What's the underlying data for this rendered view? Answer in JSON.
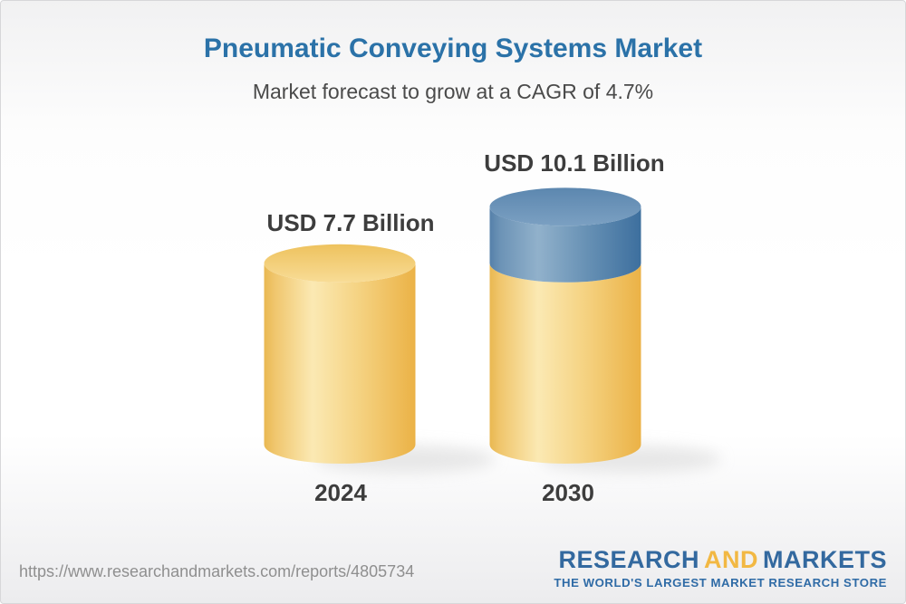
{
  "header": {
    "title": "Pneumatic Conveying Systems Market",
    "subtitle": "Market forecast to grow at a CAGR of 4.7%"
  },
  "chart_data": {
    "type": "bar",
    "style": "3d-cylinder",
    "title": "Pneumatic Conveying Systems Market",
    "subtitle": "Market forecast to grow at a CAGR of 4.7%",
    "unit": "USD Billion",
    "cagr_percent": 4.7,
    "categories": [
      "2024",
      "2030"
    ],
    "values": [
      7.7,
      10.1
    ],
    "bars": [
      {
        "category": "2024",
        "label": "USD 7.7 Billion",
        "total": 7.7,
        "segments": [
          {
            "color": "gold",
            "value": 7.7
          }
        ]
      },
      {
        "category": "2030",
        "label": "USD 10.1 Billion",
        "total": 10.1,
        "segments": [
          {
            "color": "gold",
            "value": 7.7
          },
          {
            "color": "blue",
            "value": 2.4
          }
        ]
      }
    ],
    "colors": {
      "gold": "#f2c263",
      "blue": "#5d87af"
    },
    "legend": "none",
    "grid": false
  },
  "footer": {
    "url": "https://www.researchandmarkets.com/reports/4805734",
    "logo": {
      "word1": "RESEARCH",
      "word2": "AND",
      "word3": "MARKETS",
      "tagline": "THE WORLD'S LARGEST MARKET RESEARCH STORE"
    }
  },
  "colors": {
    "title_blue": "#2b72a8",
    "logo_blue": "#33699f",
    "logo_gold": "#f2b843",
    "label_dark": "#3d3d3d",
    "url_gray": "#8f8f8f"
  }
}
